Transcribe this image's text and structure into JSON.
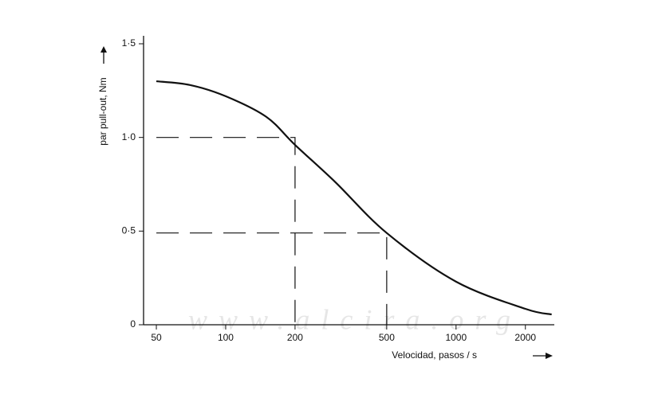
{
  "chart_data": {
    "type": "line",
    "x_log": true,
    "x_label": "Velocidad, pasos / s",
    "y_label": "par pull-out,  Nm",
    "watermark": "www.alcira.org",
    "x": [
      50,
      70,
      100,
      150,
      200,
      300,
      500,
      1000,
      2000,
      2600
    ],
    "series": [
      {
        "color": "#111111",
        "values": [
          1.3,
          1.28,
          1.22,
          1.11,
          0.96,
          0.76,
          0.49,
          0.23,
          0.085,
          0.055
        ]
      }
    ],
    "guides": [
      {
        "x": 200,
        "y": 1.0
      },
      {
        "x": 500,
        "y": 0.49
      }
    ],
    "xlim": [
      44,
      2670
    ],
    "xticks": [
      50,
      100,
      200,
      500,
      1000,
      2000
    ],
    "ylim": [
      0,
      1.5
    ],
    "yticks": [
      0,
      {
        "value": 0.5,
        "label": "0·5"
      },
      {
        "value": 1.0,
        "label": "1·0"
      },
      {
        "value": 1.5,
        "label": "1·5"
      }
    ]
  }
}
